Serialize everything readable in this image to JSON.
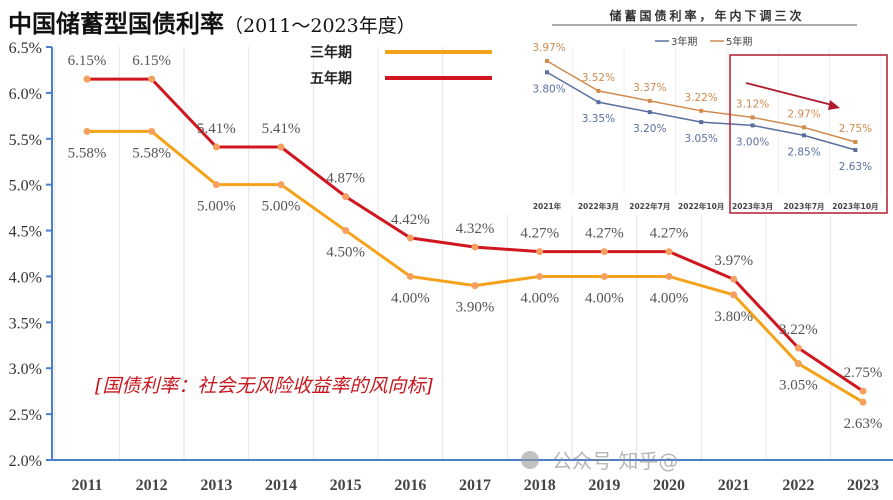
{
  "title": "中国储蓄型国债利率",
  "subtitle": "（2011～2023年度）",
  "annotation": "[国债利率：社会无风险收益率的风向标]",
  "watermark": "公众号 知乎@",
  "chart_data": [
    {
      "type": "line",
      "categories": [
        "2011",
        "2012",
        "2013",
        "2014",
        "2015",
        "2016",
        "2017",
        "2018",
        "2019",
        "2020",
        "2021",
        "2022",
        "2023"
      ],
      "ylim": [
        2.0,
        6.5
      ],
      "yticks": [
        "2.0%",
        "2.5%",
        "3.0%",
        "3.5%",
        "4.0%",
        "4.5%",
        "5.0%",
        "5.5%",
        "6.0%",
        "6.5%"
      ],
      "legend_position": "top-center",
      "grid": "vertical",
      "series": [
        {
          "name": "三年期",
          "color": "#f5a21b",
          "values": [
            5.58,
            5.58,
            5.0,
            5.0,
            4.5,
            4.0,
            3.9,
            4.0,
            4.0,
            4.0,
            3.8,
            3.05,
            2.63
          ],
          "labels": [
            "5.58%",
            "5.58%",
            "5.00%",
            "5.00%",
            "4.50%",
            "4.00%",
            "3.90%",
            "4.00%",
            "4.00%",
            "4.00%",
            "3.80%",
            "3.05%",
            "2.63%"
          ]
        },
        {
          "name": "五年期",
          "color": "#d0171f",
          "values": [
            6.15,
            6.15,
            5.41,
            5.41,
            4.87,
            4.42,
            4.32,
            4.27,
            4.27,
            4.27,
            3.97,
            3.22,
            2.75
          ],
          "labels": [
            "6.15%",
            "6.15%",
            "5.41%",
            "5.41%",
            "4.87%",
            "4.42%",
            "4.32%",
            "4.27%",
            "4.27%",
            "4.27%",
            "3.97%",
            "3.22%",
            "2.75%"
          ]
        }
      ]
    },
    {
      "type": "line",
      "title": "储蓄国债利率，年内下调三次",
      "categories": [
        "2021年",
        "2022年3月",
        "2022年7月",
        "2022年10月",
        "2023年3月",
        "2023年7月",
        "2023年10月"
      ],
      "legend_position": "top",
      "highlight": [
        "2023年3月",
        "2023年10月"
      ],
      "series": [
        {
          "name": "3年期",
          "color": "#5a6fa0",
          "values": [
            3.8,
            3.35,
            3.2,
            3.05,
            3.0,
            2.85,
            2.63
          ],
          "labels": [
            "3.80%",
            "3.35%",
            "3.20%",
            "3.05%",
            "3.00%",
            "2.85%",
            "2.63%"
          ]
        },
        {
          "name": "5年期",
          "color": "#d18a4c",
          "values": [
            3.97,
            3.52,
            3.37,
            3.22,
            3.12,
            2.97,
            2.75
          ],
          "labels": [
            "3.97%",
            "3.52%",
            "3.37%",
            "3.22%",
            "3.12%",
            "2.97%",
            "2.75%"
          ]
        }
      ]
    }
  ]
}
